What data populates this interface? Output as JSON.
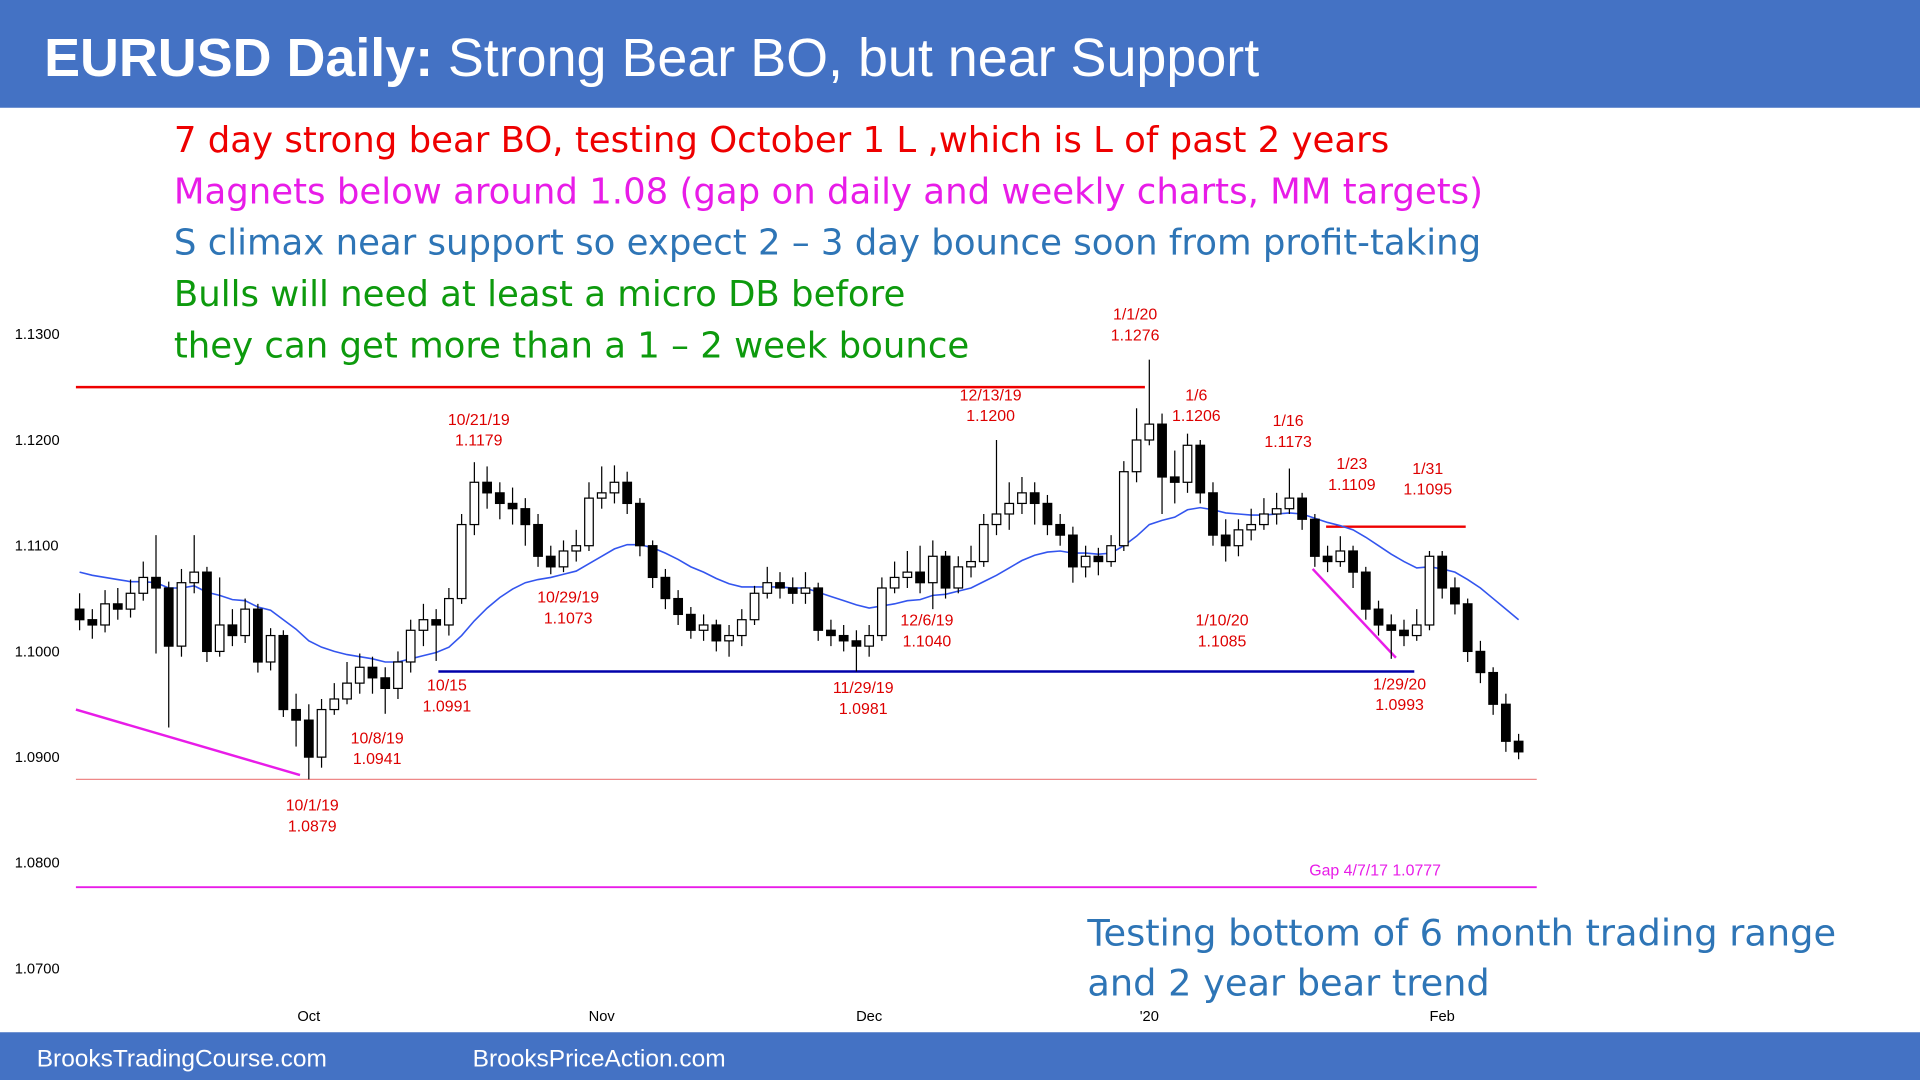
{
  "header": {
    "title_bold": "EURUSD Daily:",
    "title_rest": "Strong Bear BO, but near Support"
  },
  "notes": [
    {
      "text": "7 day strong bear BO, testing October 1 L ,which is L of past 2 years",
      "color": "#ee0000"
    },
    {
      "text": "Magnets below around 1.08 (gap on daily and weekly charts, MM targets)",
      "color": "#e81ce8"
    },
    {
      "text": "S climax near support so expect 2 – 3 day bounce soon from profit-taking",
      "color": "#2e75b6"
    },
    {
      "text": "Bulls will need at least a micro DB before",
      "color": "#0d9a0d"
    },
    {
      "text": "they can get more than a 1 – 2 week bounce",
      "color": "#0d9a0d"
    }
  ],
  "conclusion": [
    "Testing bottom of 6 month trading range",
    "and 2 year bear trend"
  ],
  "footer": {
    "left": "BrooksTradingCourse.com",
    "right": "BrooksPriceAction.com"
  },
  "chart_data": {
    "type": "candlestick",
    "categories": [
      null,
      null,
      null,
      null,
      null,
      null,
      null,
      null,
      null,
      null,
      null,
      null,
      null,
      null,
      null,
      null,
      null,
      null,
      "Oct",
      null,
      null,
      null,
      null,
      null,
      null,
      null,
      null,
      null,
      null,
      null,
      null,
      null,
      null,
      null,
      null,
      null,
      null,
      null,
      null,
      null,
      null,
      "Nov",
      null,
      null,
      null,
      null,
      null,
      null,
      null,
      null,
      null,
      null,
      null,
      null,
      null,
      null,
      null,
      null,
      null,
      null,
      null,
      null,
      "Dec",
      null,
      null,
      null,
      null,
      null,
      null,
      null,
      null,
      null,
      null,
      null,
      null,
      null,
      null,
      null,
      null,
      null,
      null,
      null,
      null,
      null,
      "'20",
      null,
      null,
      null,
      null,
      null,
      null,
      null,
      null,
      null,
      null,
      null,
      null,
      null,
      null,
      null,
      null,
      null,
      null,
      null,
      null,
      null,
      null,
      "Feb",
      null,
      null,
      null,
      null,
      null,
      null
    ],
    "open": [
      1.104,
      1.103,
      1.1025,
      1.1045,
      1.104,
      1.1055,
      1.107,
      1.106,
      1.1005,
      1.1065,
      1.1075,
      1.1,
      1.1025,
      1.1015,
      1.104,
      1.099,
      1.1015,
      1.0945,
      1.0935,
      1.09,
      1.0945,
      1.0955,
      1.097,
      1.0985,
      1.0975,
      1.0965,
      1.099,
      1.102,
      1.103,
      1.1025,
      1.105,
      1.112,
      1.116,
      1.115,
      1.114,
      1.1135,
      1.112,
      1.109,
      1.108,
      1.1095,
      1.11,
      1.1145,
      1.115,
      1.116,
      1.114,
      1.11,
      1.107,
      1.105,
      1.1035,
      1.102,
      1.1025,
      1.101,
      1.1015,
      1.103,
      1.1055,
      1.1065,
      1.106,
      1.1055,
      1.106,
      1.102,
      1.1015,
      1.101,
      1.1005,
      1.1015,
      1.106,
      1.107,
      1.1075,
      1.1065,
      1.109,
      1.106,
      1.108,
      1.1085,
      1.112,
      1.113,
      1.114,
      1.115,
      1.114,
      1.112,
      1.111,
      1.108,
      1.109,
      1.1085,
      1.11,
      1.117,
      1.12,
      1.1215,
      1.1165,
      1.116,
      1.1195,
      1.115,
      1.111,
      1.11,
      1.1115,
      1.112,
      1.113,
      1.1135,
      1.1145,
      1.1125,
      1.109,
      1.1085,
      1.1095,
      1.1075,
      1.104,
      1.1025,
      1.102,
      1.1015,
      1.1025,
      1.109,
      1.106,
      1.1045,
      1.1,
      1.098,
      1.095,
      1.0915
    ],
    "high": [
      1.1055,
      1.104,
      1.1058,
      1.106,
      1.1068,
      1.1085,
      1.111,
      1.1066,
      1.1078,
      1.111,
      1.108,
      1.107,
      1.104,
      1.105,
      1.1045,
      1.1022,
      1.102,
      1.096,
      1.095,
      1.0955,
      1.097,
      1.099,
      1.0998,
      1.0995,
      1.0985,
      1.1,
      1.103,
      1.1045,
      1.104,
      1.106,
      1.113,
      1.1179,
      1.1175,
      1.116,
      1.1155,
      1.1145,
      1.113,
      1.11,
      1.1105,
      1.1115,
      1.116,
      1.1175,
      1.1176,
      1.117,
      1.1145,
      1.1105,
      1.1078,
      1.1058,
      1.1042,
      1.1035,
      1.103,
      1.1025,
      1.104,
      1.1062,
      1.108,
      1.1075,
      1.107,
      1.1075,
      1.1065,
      1.103,
      1.1025,
      1.102,
      1.1025,
      1.107,
      1.1085,
      1.1095,
      1.11,
      1.1105,
      1.1095,
      1.109,
      1.11,
      1.113,
      1.12,
      1.116,
      1.1165,
      1.116,
      1.1148,
      1.113,
      1.1118,
      1.11,
      1.1098,
      1.111,
      1.118,
      1.123,
      1.1276,
      1.1225,
      1.119,
      1.1206,
      1.12,
      1.116,
      1.1125,
      1.1125,
      1.1135,
      1.1145,
      1.115,
      1.1173,
      1.115,
      1.113,
      1.11,
      1.1109,
      1.11,
      1.108,
      1.1048,
      1.1035,
      1.103,
      1.104,
      1.1095,
      1.1095,
      1.107,
      1.105,
      1.101,
      1.0985,
      1.096,
      1.0922
    ],
    "low": [
      1.102,
      1.1012,
      1.1018,
      1.103,
      1.1032,
      1.1048,
      1.0998,
      1.0928,
      1.0995,
      1.1055,
      1.099,
      1.0995,
      1.1005,
      1.1008,
      1.098,
      1.0982,
      1.0938,
      1.091,
      1.0879,
      1.089,
      1.094,
      1.095,
      1.096,
      1.096,
      1.0941,
      1.0955,
      1.098,
      1.1005,
      1.0991,
      1.1015,
      1.1045,
      1.111,
      1.1135,
      1.1125,
      1.112,
      1.11,
      1.108,
      1.1073,
      1.1075,
      1.1085,
      1.1095,
      1.1135,
      1.114,
      1.113,
      1.109,
      1.106,
      1.104,
      1.1025,
      1.1012,
      1.101,
      1.1,
      1.0995,
      1.1005,
      1.1025,
      1.105,
      1.105,
      1.1045,
      1.1045,
      1.101,
      1.1005,
      1.1,
      1.0981,
      1.0995,
      1.101,
      1.1055,
      1.106,
      1.1055,
      1.104,
      1.105,
      1.1055,
      1.107,
      1.108,
      1.111,
      1.1115,
      1.113,
      1.112,
      1.111,
      1.11,
      1.1065,
      1.107,
      1.1072,
      1.108,
      1.1095,
      1.116,
      1.1195,
      1.113,
      1.114,
      1.115,
      1.114,
      1.11,
      1.1085,
      1.109,
      1.1105,
      1.1115,
      1.112,
      1.113,
      1.1115,
      1.108,
      1.1075,
      1.108,
      1.106,
      1.103,
      1.1015,
      1.0993,
      1.1005,
      1.101,
      1.102,
      1.105,
      1.1035,
      1.099,
      1.097,
      1.094,
      1.0905,
      1.0898
    ],
    "close": [
      1.103,
      1.1025,
      1.1045,
      1.104,
      1.1055,
      1.107,
      1.106,
      1.1005,
      1.1065,
      1.1075,
      1.1,
      1.1025,
      1.1015,
      1.104,
      1.099,
      1.1015,
      1.0945,
      1.0935,
      1.09,
      1.0945,
      1.0955,
      1.097,
      1.0985,
      1.0975,
      1.0965,
      1.099,
      1.102,
      1.103,
      1.1025,
      1.105,
      1.112,
      1.116,
      1.115,
      1.114,
      1.1135,
      1.112,
      1.109,
      1.108,
      1.1095,
      1.11,
      1.1145,
      1.115,
      1.116,
      1.114,
      1.11,
      1.107,
      1.105,
      1.1035,
      1.102,
      1.1025,
      1.101,
      1.1015,
      1.103,
      1.1055,
      1.1065,
      1.106,
      1.1055,
      1.106,
      1.102,
      1.1015,
      1.101,
      1.1005,
      1.1015,
      1.106,
      1.107,
      1.1075,
      1.1065,
      1.109,
      1.106,
      1.108,
      1.1085,
      1.112,
      1.113,
      1.114,
      1.115,
      1.114,
      1.112,
      1.111,
      1.108,
      1.109,
      1.1085,
      1.11,
      1.117,
      1.12,
      1.1215,
      1.1165,
      1.116,
      1.1195,
      1.115,
      1.111,
      1.11,
      1.1115,
      1.112,
      1.113,
      1.1135,
      1.1145,
      1.1125,
      1.109,
      1.1085,
      1.1095,
      1.1075,
      1.104,
      1.1025,
      1.102,
      1.1015,
      1.1025,
      1.109,
      1.106,
      1.1045,
      1.1,
      1.098,
      1.095,
      1.0915,
      1.0905
    ],
    "up_color": "#ffffff",
    "down_color": "#000000",
    "ema": {
      "color": "#3355ee",
      "values": [
        1.1075,
        1.1072,
        1.107,
        1.1068,
        1.1066,
        1.1066,
        1.1065,
        1.106,
        1.106,
        1.1062,
        1.1056,
        1.1053,
        1.1049,
        1.1048,
        1.1042,
        1.1039,
        1.103,
        1.1021,
        1.101,
        1.1004,
        1.1,
        1.0997,
        1.0995,
        1.0993,
        1.099,
        1.099,
        1.0993,
        1.0996,
        1.0999,
        1.1004,
        1.1015,
        1.1029,
        1.1041,
        1.1051,
        1.1059,
        1.1065,
        1.1068,
        1.107,
        1.1073,
        1.1076,
        1.1083,
        1.109,
        1.1097,
        1.1101,
        1.1101,
        1.1098,
        1.1093,
        1.1087,
        1.108,
        1.1075,
        1.1069,
        1.1064,
        1.1061,
        1.1061,
        1.1061,
        1.1061,
        1.106,
        1.106,
        1.1056,
        1.1052,
        1.1048,
        1.1044,
        1.1041,
        1.1043,
        1.1045,
        1.1048,
        1.1049,
        1.1053,
        1.1054,
        1.1057,
        1.106,
        1.1066,
        1.1072,
        1.1079,
        1.1086,
        1.1091,
        1.1094,
        1.1095,
        1.1093,
        1.1093,
        1.1092,
        1.1093,
        1.11,
        1.1109,
        1.112,
        1.1124,
        1.1127,
        1.1134,
        1.1136,
        1.1134,
        1.1131,
        1.113,
        1.1129,
        1.1129,
        1.113,
        1.1131,
        1.113,
        1.1126,
        1.1122,
        1.1119,
        1.1115,
        1.1108,
        1.11,
        1.1092,
        1.1085,
        1.1079,
        1.108,
        1.1078,
        1.1075,
        1.1068,
        1.106,
        1.105,
        1.104,
        1.103
      ]
    },
    "ylim": [
      1.0652,
      1.1375
    ],
    "yticks": [
      {
        "value": 1.13,
        "label": "1.1300"
      },
      {
        "value": 1.12,
        "label": "1.1200"
      },
      {
        "value": 1.11,
        "label": "1.1100"
      },
      {
        "value": 1.1,
        "label": "1.1000"
      },
      {
        "value": 1.09,
        "label": "1.0900"
      },
      {
        "value": 1.08,
        "label": "1.0800"
      },
      {
        "value": 1.07,
        "label": "1.0700"
      }
    ],
    "levels": [
      {
        "value": 1.125,
        "color": "#ee0000"
      },
      {
        "value": 1.0981,
        "color": "#0000aa"
      },
      {
        "value": 1.0879,
        "color": "#ee8888"
      },
      {
        "value": 1.0777,
        "color": "#e81ce8"
      },
      {
        "value": 1.1118,
        "color": "#ee0000"
      }
    ],
    "trendlines": [
      {
        "from": 1.0945,
        "to": 1.0883,
        "color": "#e81ce8"
      },
      {
        "from": 1.1078,
        "to": 1.0994,
        "color": "#e81ce8"
      }
    ],
    "annotations": [
      {
        "date": "10/21/19",
        "price": 1.1179
      },
      {
        "date": "10/29/19",
        "price": 1.1073
      },
      {
        "date": "10/15",
        "price": 1.0991
      },
      {
        "date": "10/8/19",
        "price": 1.0941
      },
      {
        "date": "10/1/19",
        "price": 1.0879
      },
      {
        "date": "11/29/19",
        "price": 1.0981
      },
      {
        "date": "12/6/19",
        "price": {
          "value": 1.104,
          "label": "1.1040"
        }
      },
      {
        "date": "12/13/19",
        "price": {
          "value": 1.12,
          "label": "1.1200"
        }
      },
      {
        "date": "1/1/20",
        "price": 1.1276
      },
      {
        "date": "1/6",
        "price": 1.1206
      },
      {
        "date": "1/10/20",
        "price": 1.1085
      },
      {
        "date": "1/16",
        "price": 1.1173
      },
      {
        "date": "1/23",
        "price": 1.1109
      },
      {
        "date": "1/29/20",
        "price": 1.0993
      },
      {
        "date": "1/31",
        "price": 1.1095
      }
    ],
    "annotation_color": "#dd0000",
    "gap_label": "Gap 4/7/17 1.0777"
  }
}
